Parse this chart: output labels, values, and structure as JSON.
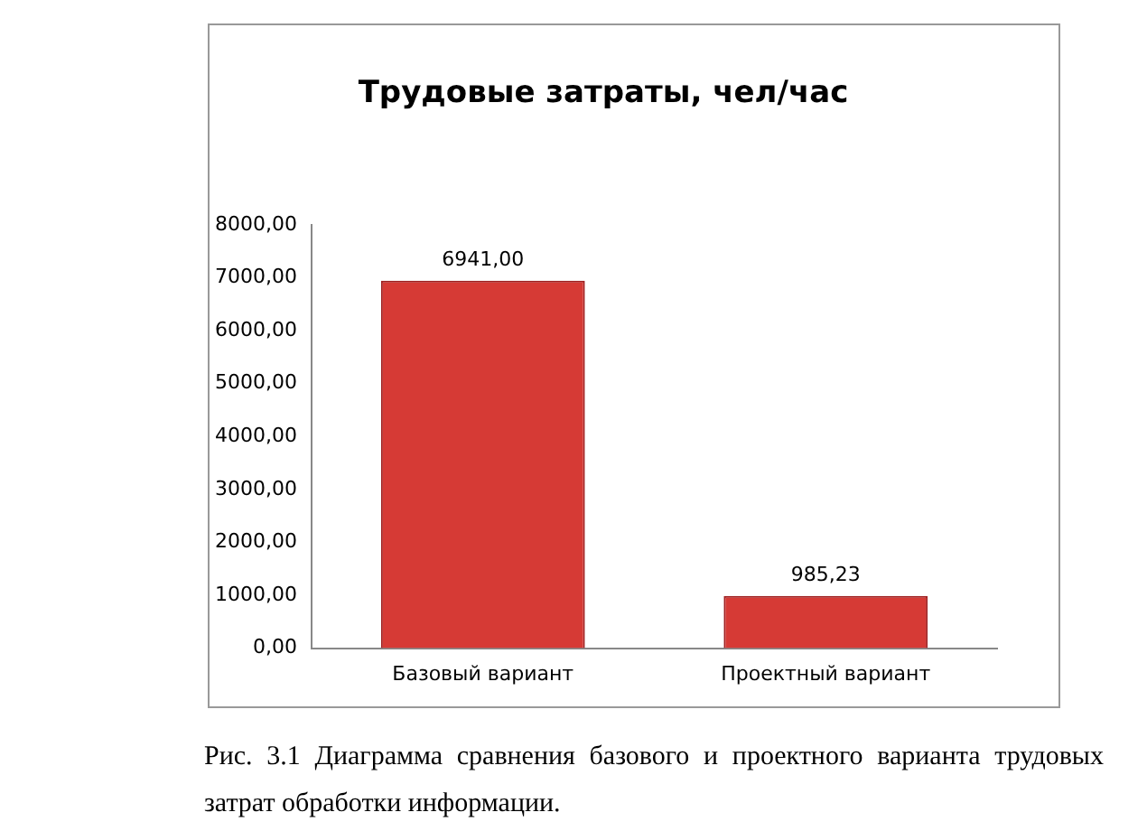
{
  "chart_data": {
    "type": "bar",
    "title": "Трудовые затраты, чел/час",
    "categories": [
      "Базовый вариант",
      "Проектный вариант"
    ],
    "values": [
      6941,
      985.23
    ],
    "color": "#d63a35",
    "value_labels": [
      "6941,00",
      "985,23"
    ],
    "ylim": [
      0,
      8000
    ],
    "yticks": [
      {
        "value": 0,
        "label": "0,00"
      },
      {
        "value": 1000,
        "label": "1000,00"
      },
      {
        "value": 2000,
        "label": "2000,00"
      },
      {
        "value": 3000,
        "label": "3000,00"
      },
      {
        "value": 4000,
        "label": "4000,00"
      },
      {
        "value": 5000,
        "label": "5000,00"
      },
      {
        "value": 6000,
        "label": "6000,00"
      },
      {
        "value": 7000,
        "label": "7000,00"
      },
      {
        "value": 8000,
        "label": "8000,00"
      }
    ],
    "grid": false,
    "legend": false,
    "annotations": [
      "Рис. 3.1 Диаграмма сравнения базового и проектного варианта трудовых затрат обработки информации."
    ]
  }
}
